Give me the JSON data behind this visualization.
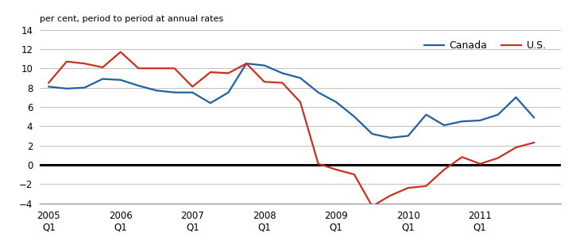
{
  "canada_x": [
    2005.0,
    2005.25,
    2005.5,
    2005.75,
    2006.0,
    2006.25,
    2006.5,
    2006.75,
    2007.0,
    2007.25,
    2007.5,
    2007.75,
    2008.0,
    2008.25,
    2008.5,
    2008.75,
    2009.0,
    2009.25,
    2009.5,
    2009.75,
    2010.0,
    2010.25,
    2010.5,
    2010.75,
    2011.0,
    2011.25,
    2011.5,
    2011.75
  ],
  "canada_y": [
    8.1,
    7.9,
    8.0,
    8.9,
    8.8,
    8.2,
    7.7,
    7.5,
    7.5,
    6.4,
    7.5,
    10.5,
    10.3,
    9.5,
    9.0,
    7.5,
    6.5,
    5.0,
    3.2,
    2.8,
    3.0,
    5.2,
    4.1,
    4.5,
    4.6,
    5.2,
    7.0,
    4.9
  ],
  "us_x": [
    2005.0,
    2005.25,
    2005.5,
    2005.75,
    2006.0,
    2006.25,
    2006.5,
    2006.75,
    2007.0,
    2007.25,
    2007.5,
    2007.75,
    2008.0,
    2008.25,
    2008.5,
    2008.75,
    2009.0,
    2009.25,
    2009.5,
    2009.75,
    2010.0,
    2010.25,
    2010.5,
    2010.75,
    2011.0,
    2011.25,
    2011.5,
    2011.75
  ],
  "us_y": [
    8.5,
    10.7,
    10.5,
    10.1,
    11.7,
    10.0,
    10.0,
    10.0,
    8.1,
    9.6,
    9.5,
    10.5,
    8.6,
    8.5,
    6.5,
    0.1,
    -0.5,
    -1.0,
    -4.3,
    -3.2,
    -2.4,
    -2.2,
    -0.5,
    0.8,
    0.1,
    0.7,
    1.8,
    2.3
  ],
  "canada_color": "#2060a0",
  "us_color": "#c83020",
  "zero_line_color": "#000000",
  "grid_color": "#c0c0c0",
  "ylabel": "per cent, period to period at annual rates",
  "ylim": [
    -4,
    14
  ],
  "yticks": [
    -4,
    -2,
    0,
    2,
    4,
    6,
    8,
    10,
    12,
    14
  ],
  "xlim": [
    2004.88,
    2012.12
  ],
  "xtick_years": [
    2005,
    2006,
    2007,
    2008,
    2009,
    2010,
    2011
  ],
  "legend_canada": "Canada",
  "legend_us": "U.S.",
  "background_color": "#ffffff"
}
